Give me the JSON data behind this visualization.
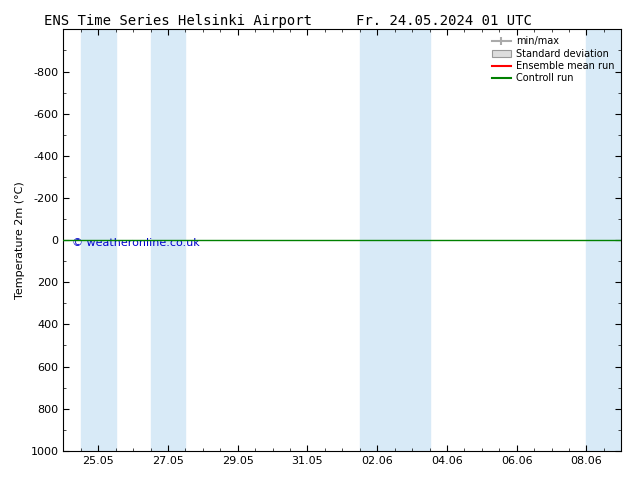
{
  "title_left": "ENS Time Series Helsinki Airport",
  "title_right": "Fr. 24.05.2024 01 UTC",
  "ylabel": "Temperature 2m (°C)",
  "ylim_bottom": 1000,
  "ylim_top": -1000,
  "yticks": [
    -800,
    -600,
    -400,
    -200,
    0,
    200,
    400,
    600,
    800,
    1000
  ],
  "xtick_labels": [
    "25.05",
    "27.05",
    "29.05",
    "31.05",
    "02.06",
    "04.06",
    "06.06",
    "08.06"
  ],
  "xtick_positions": [
    1,
    3,
    5,
    7,
    9,
    11,
    13,
    15
  ],
  "xlim": [
    0,
    16
  ],
  "shade_bands": [
    [
      0.5,
      1.5
    ],
    [
      2.5,
      3.5
    ],
    [
      8.5,
      10.5
    ],
    [
      15.0,
      16.0
    ]
  ],
  "shade_color": "#d8eaf7",
  "control_run_y": 0,
  "control_run_color": "#008000",
  "ensemble_mean_color": "#ff0000",
  "watermark": "© weatheronline.co.uk",
  "watermark_color": "#0000cc",
  "background_color": "#ffffff",
  "legend_items": [
    "min/max",
    "Standard deviation",
    "Ensemble mean run",
    "Controll run"
  ],
  "legend_colors_line": [
    "#aaaaaa",
    "#cccccc",
    "#ff0000",
    "#008000"
  ],
  "title_fontsize": 10,
  "axis_fontsize": 8,
  "watermark_fontsize": 8
}
